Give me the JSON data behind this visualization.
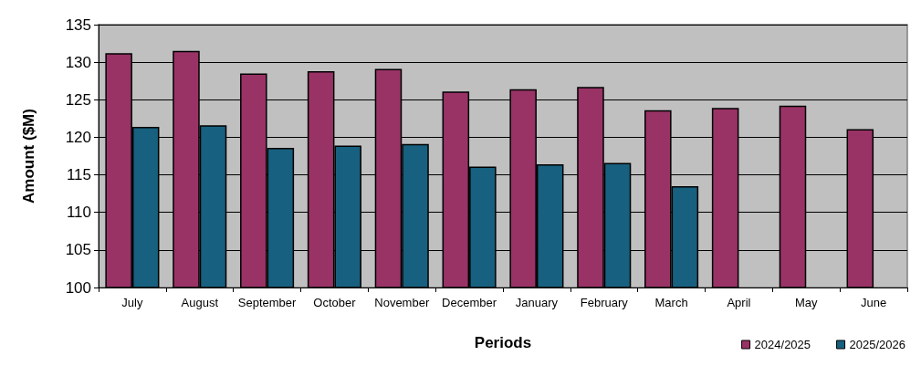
{
  "chart_data": {
    "type": "bar",
    "xlabel": "Periods",
    "ylabel": "Amount ($M)",
    "categories": [
      "July",
      "August",
      "September",
      "October",
      "November",
      "December",
      "January",
      "February",
      "March",
      "April",
      "May",
      "June"
    ],
    "series": [
      {
        "name": "2024/2025",
        "color": "#993366",
        "values": [
          131.2,
          131.5,
          128.5,
          128.8,
          129.1,
          126.1,
          126.4,
          126.7,
          123.6,
          123.9,
          124.2,
          121.1
        ]
      },
      {
        "name": "2025/2026",
        "color": "#17607f",
        "values": [
          121.4,
          121.6,
          118.6,
          118.9,
          119.1,
          116.1,
          116.4,
          116.6,
          113.5,
          null,
          null,
          null
        ]
      }
    ],
    "ylim": [
      100,
      135
    ],
    "yticks": [
      100,
      105,
      110,
      115,
      120,
      125,
      130,
      135
    ],
    "grid": "y",
    "legend": "bottom right"
  }
}
